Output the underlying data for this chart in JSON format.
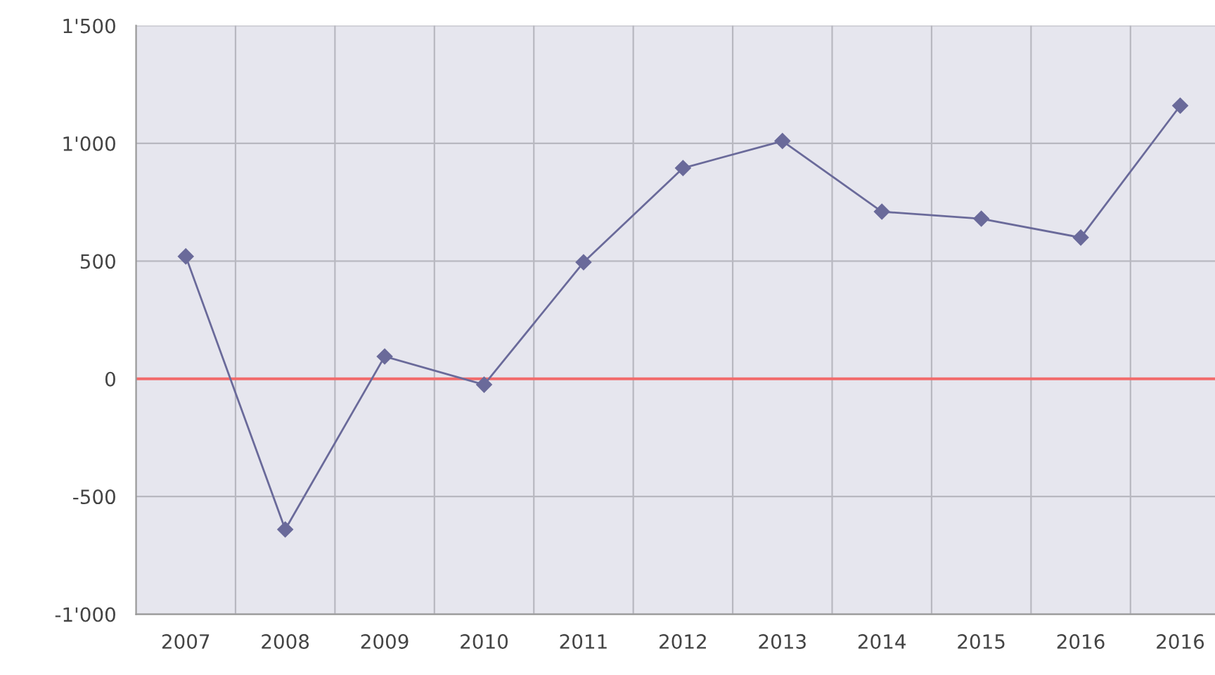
{
  "chart_data": {
    "type": "line",
    "categories": [
      "2007",
      "2008",
      "2009",
      "2010",
      "2011",
      "2012",
      "2013",
      "2014",
      "2015",
      "2016",
      "2016"
    ],
    "series": [
      {
        "color": "#6a6a9a",
        "values": [
          520,
          -640,
          95,
          -25,
          495,
          895,
          1010,
          710,
          680,
          600,
          1160
        ]
      }
    ],
    "ylim": [
      -1000,
      1500
    ],
    "yticks": [
      {
        "value": -1000,
        "label": "-1'000"
      },
      -500,
      0,
      500,
      {
        "value": 1000,
        "label": "1'000"
      },
      {
        "value": 1500,
        "label": "1'500"
      }
    ],
    "ref_lines": [
      {
        "axis": "y",
        "value": 0,
        "color": "#f26b6b"
      }
    ],
    "grid": true,
    "marker": "diamond",
    "line_style": "solid",
    "legend": false
  }
}
